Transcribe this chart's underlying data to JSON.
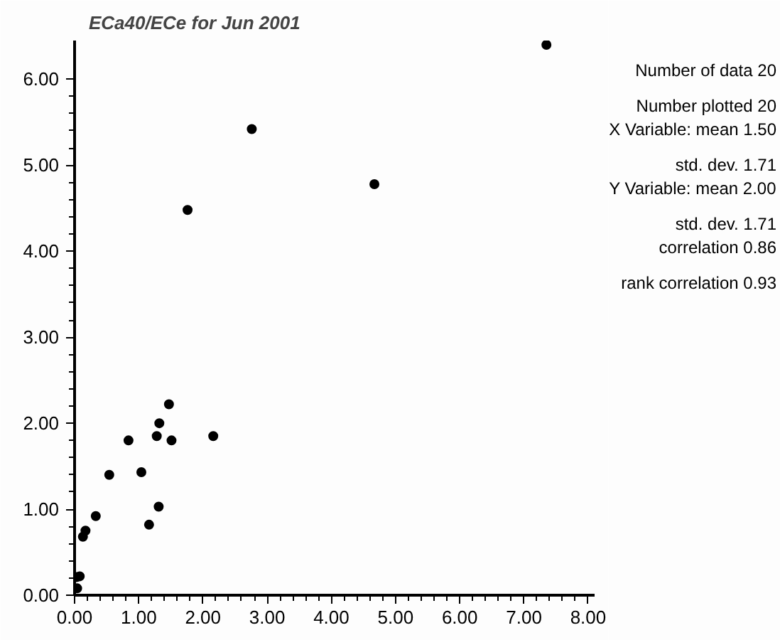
{
  "chart_data": {
    "type": "scatter",
    "title": "ECa40/ECe for Jun 2001",
    "x": [
      7.35,
      2.76,
      4.67,
      1.76,
      1.47,
      1.32,
      0.84,
      1.28,
      1.51,
      2.16,
      0.54,
      1.04,
      1.31,
      1.16,
      0.33,
      0.17,
      0.13,
      0.08,
      0.03,
      0.04
    ],
    "series": [
      {
        "color": "#000000",
        "values": [
          6.4,
          5.42,
          4.78,
          4.48,
          2.22,
          2.0,
          1.8,
          1.85,
          1.8,
          1.85,
          1.4,
          1.43,
          1.03,
          0.82,
          0.92,
          0.75,
          0.68,
          0.22,
          0.21,
          0.08
        ]
      }
    ],
    "xlim": [
      0,
      8.1
    ],
    "ylim": [
      0,
      6.45
    ],
    "xticks": [
      {
        "value": 0,
        "label": "0.00"
      },
      {
        "value": 1,
        "label": "1.00"
      },
      {
        "value": 2,
        "label": "2.00"
      },
      {
        "value": 3,
        "label": "3.00"
      },
      {
        "value": 4,
        "label": "4.00"
      },
      {
        "value": 5,
        "label": "5.00"
      },
      {
        "value": 6,
        "label": "6.00"
      },
      {
        "value": 7,
        "label": "7.00"
      },
      {
        "value": 8,
        "label": "8.00"
      }
    ],
    "yticks": [
      {
        "value": 0,
        "label": "0.00"
      },
      {
        "value": 1,
        "label": "1.00"
      },
      {
        "value": 2,
        "label": "2.00"
      },
      {
        "value": 3,
        "label": "3.00"
      },
      {
        "value": 4,
        "label": "4.00"
      },
      {
        "value": 5,
        "label": "5.00"
      },
      {
        "value": 6,
        "label": "6.00"
      }
    ],
    "annotations": [
      "Number of data 20",
      "Number plotted 20",
      "X Variable: mean 1.50",
      "std. dev. 1.71",
      "Y Variable: mean 2.00",
      "std. dev. 1.71",
      "correlation 0.86",
      "rank correlation 0.93"
    ],
    "marker": "circle",
    "grid": false
  }
}
